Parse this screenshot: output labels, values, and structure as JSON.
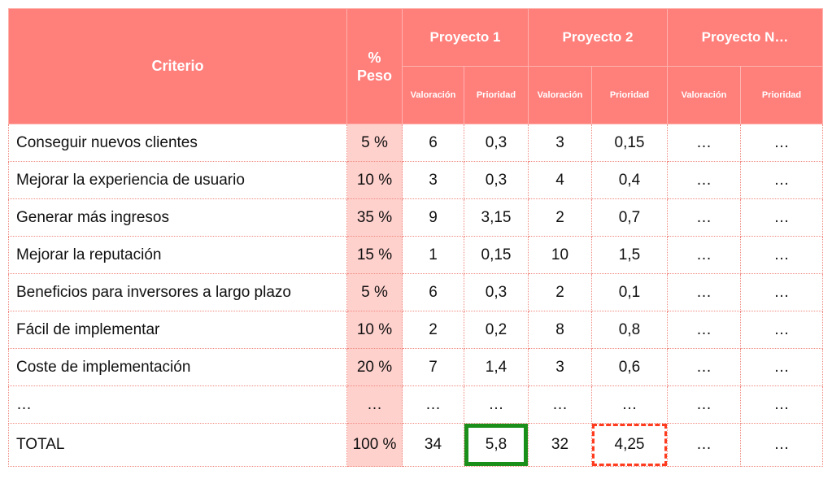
{
  "header": {
    "criterio": "Criterio",
    "peso_line1": "%",
    "peso_line2": "Peso",
    "projects": [
      "Proyecto 1",
      "Proyecto 2",
      "Proyecto N…"
    ],
    "valoracion": "Valoración",
    "prioridad": "Prioridad"
  },
  "rows": [
    {
      "criterio": "Conseguir nuevos clientes",
      "peso": "5 %",
      "v1": "6",
      "p1": "0,3",
      "v2": "3",
      "p2": "0,15",
      "vn": "…",
      "pn": "…"
    },
    {
      "criterio": "Mejorar la experiencia de usuario",
      "peso": "10 %",
      "v1": "3",
      "p1": "0,3",
      "v2": "4",
      "p2": "0,4",
      "vn": "…",
      "pn": "…"
    },
    {
      "criterio": "Generar más ingresos",
      "peso": "35 %",
      "v1": "9",
      "p1": "3,15",
      "v2": "2",
      "p2": "0,7",
      "vn": "…",
      "pn": "…"
    },
    {
      "criterio": "Mejorar la reputación",
      "peso": "15 %",
      "v1": "1",
      "p1": "0,15",
      "v2": "10",
      "p2": "1,5",
      "vn": "…",
      "pn": "…"
    },
    {
      "criterio": "Beneficios para inversores a largo plazo",
      "peso": "5 %",
      "v1": "6",
      "p1": "0,3",
      "v2": "2",
      "p2": "0,1",
      "vn": "…",
      "pn": "…"
    },
    {
      "criterio": "Fácil de implementar",
      "peso": "10 %",
      "v1": "2",
      "p1": "0,2",
      "v2": "8",
      "p2": "0,8",
      "vn": "…",
      "pn": "…"
    },
    {
      "criterio": "Coste de implementación",
      "peso": "20 %",
      "v1": "7",
      "p1": "1,4",
      "v2": "3",
      "p2": "0,6",
      "vn": "…",
      "pn": "…"
    },
    {
      "criterio": "…",
      "peso": "…",
      "v1": "…",
      "p1": "…",
      "v2": "…",
      "p2": "…",
      "vn": "…",
      "pn": "…"
    }
  ],
  "total": {
    "criterio": "TOTAL",
    "peso": "100 %",
    "v1": "34",
    "p1": "5,8",
    "v2": "32",
    "p2": "4,25",
    "vn": "…",
    "pn": "…"
  },
  "colors": {
    "header_bg": "#ff7f7b",
    "peso_bg": "#ffd1cd",
    "best_outline": "#1a8f1a",
    "second_outline": "#ff3b1f"
  }
}
